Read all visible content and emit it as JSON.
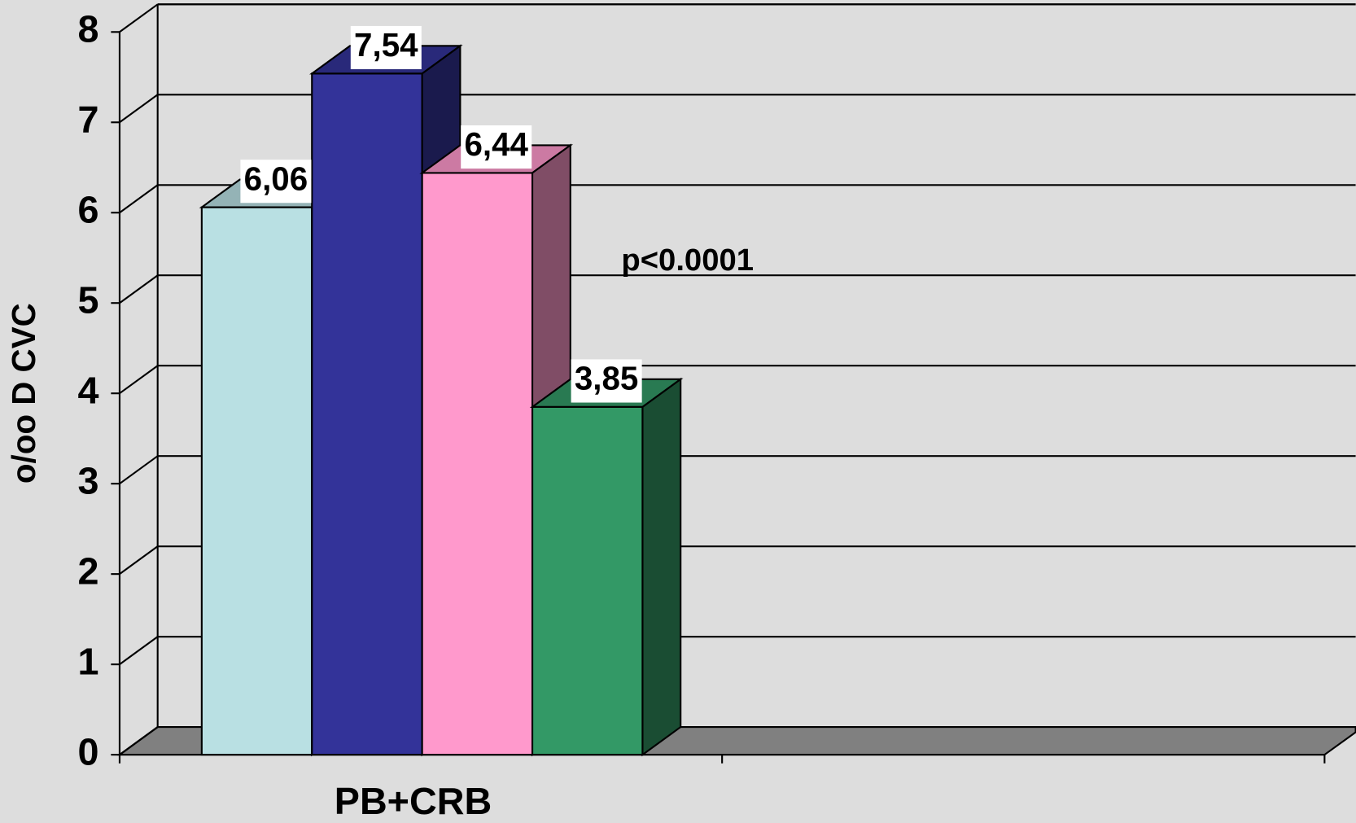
{
  "chart_data": {
    "type": "bar3d",
    "y_label": "o/oo D CVC",
    "categories": [
      "PB+CRB",
      null
    ],
    "series": [
      {
        "color": "#b9e0e3",
        "values": [
          6.06,
          null
        ],
        "value_labels": [
          "6,06",
          null
        ]
      },
      {
        "color": "#333399",
        "values": [
          7.54,
          null
        ],
        "value_labels": [
          "7,54",
          null
        ]
      },
      {
        "color": "#ff99cc",
        "values": [
          6.44,
          null
        ],
        "value_labels": [
          "6,44",
          null
        ]
      },
      {
        "color": "#339966",
        "values": [
          3.85,
          null
        ],
        "value_labels": [
          "3,85",
          null
        ]
      }
    ],
    "annotation": "p<0.0001",
    "ylim": [
      0,
      8
    ],
    "yticks": [
      0,
      1,
      2,
      3,
      4,
      5,
      6,
      7,
      8
    ],
    "grid": true
  }
}
